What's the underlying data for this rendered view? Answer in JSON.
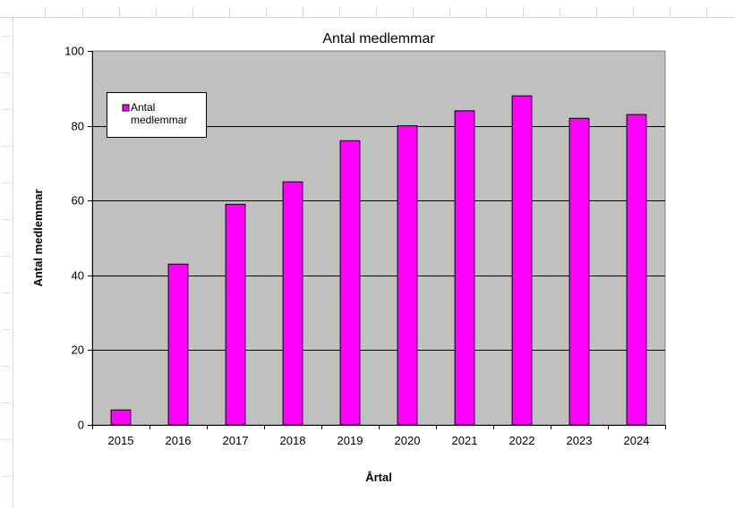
{
  "chart_data": {
    "type": "bar",
    "title": "Antal medlemmar",
    "xlabel": "Årtal",
    "ylabel": "Antal medlemmar",
    "categories": [
      "2015",
      "2016",
      "2017",
      "2018",
      "2019",
      "2020",
      "2021",
      "2022",
      "2023",
      "2024"
    ],
    "series": [
      {
        "name": "Antal medlemmar",
        "values": [
          4,
          43,
          59,
          65,
          76,
          80,
          84,
          88,
          82,
          83
        ]
      }
    ],
    "ylim": [
      0,
      100
    ],
    "yticks": [
      "0",
      "20",
      "40",
      "60",
      "80",
      "100"
    ],
    "grid": true,
    "legend": {
      "placement": "top-left",
      "label_line1": "Antal",
      "label_line2": "medlemmar"
    },
    "colors": {
      "bar_fill": "#ff00ff",
      "plot_background": "#c0c0c0",
      "gridline": "#000000"
    }
  }
}
